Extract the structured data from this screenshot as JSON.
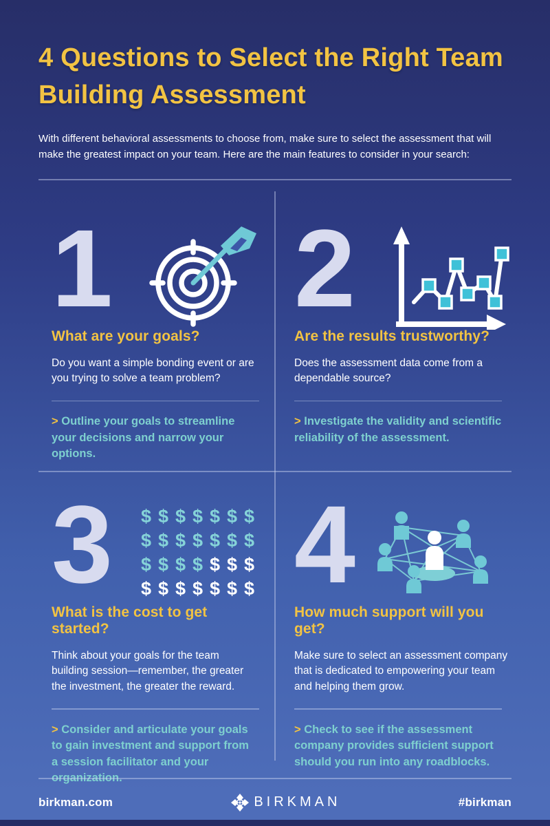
{
  "header": {
    "title": "4 Questions to Select the Right Team Building Assessment",
    "intro": "With different behavioral assessments to choose from, make sure to select the assessment that will make the greatest impact on your team. Here are the main features to consider in your search:"
  },
  "questions": [
    {
      "number": "1",
      "icon": "target-icon",
      "heading": "What are your goals?",
      "body": "Do you want a simple bonding event or are you trying to solve a team problem?",
      "tip_marker": ">",
      "tip": "Outline your goals to streamline your decisions and narrow your options."
    },
    {
      "number": "2",
      "icon": "line-chart-icon",
      "heading": "Are the results trustworthy?",
      "body": "Does the assessment data come from a dependable source?",
      "tip_marker": ">",
      "tip": "Investigate the validity and scientific reliability of the assessment."
    },
    {
      "number": "3",
      "icon": "dollar-grid-icon",
      "heading": "What is the cost to get started?",
      "body": "Think about your goals for the team building session—remember, the greater the investment, the greater the reward.",
      "tip_marker": ">",
      "tip": "Consider and articulate your goals to gain investment and support from a session facilitator and your organization."
    },
    {
      "number": "4",
      "icon": "people-network-icon",
      "heading": "How much support will you get?",
      "body": "Make sure to select an assessment company that is dedicated to empowering your team and helping them grow.",
      "tip_marker": ">",
      "tip": "Check to see if the assessment company provides sufficient support should you run into any roadblocks."
    }
  ],
  "dollar_grid": {
    "symbol": "$",
    "rows": [
      [
        "t",
        "t",
        "t",
        "t",
        "t",
        "t",
        "t"
      ],
      [
        "t",
        "t",
        "t",
        "t",
        "t",
        "t",
        "t"
      ],
      [
        "t",
        "t",
        "t",
        "t",
        "w",
        "w",
        "w"
      ],
      [
        "w",
        "w",
        "w",
        "w",
        "w",
        "w",
        "w"
      ]
    ]
  },
  "footer": {
    "site": "birkman.com",
    "brand": "BIRKMAN",
    "hashtag": "#birkman"
  },
  "colors": {
    "yellow": "#F2C343",
    "teal_text": "#7ED0CF",
    "icon_teal": "#6FC9D6",
    "number": "#D8DBEF",
    "bg_top": "#272E68",
    "bg_bottom": "#4E6DB9",
    "divider": "rgba(205,212,240,0.45)"
  }
}
